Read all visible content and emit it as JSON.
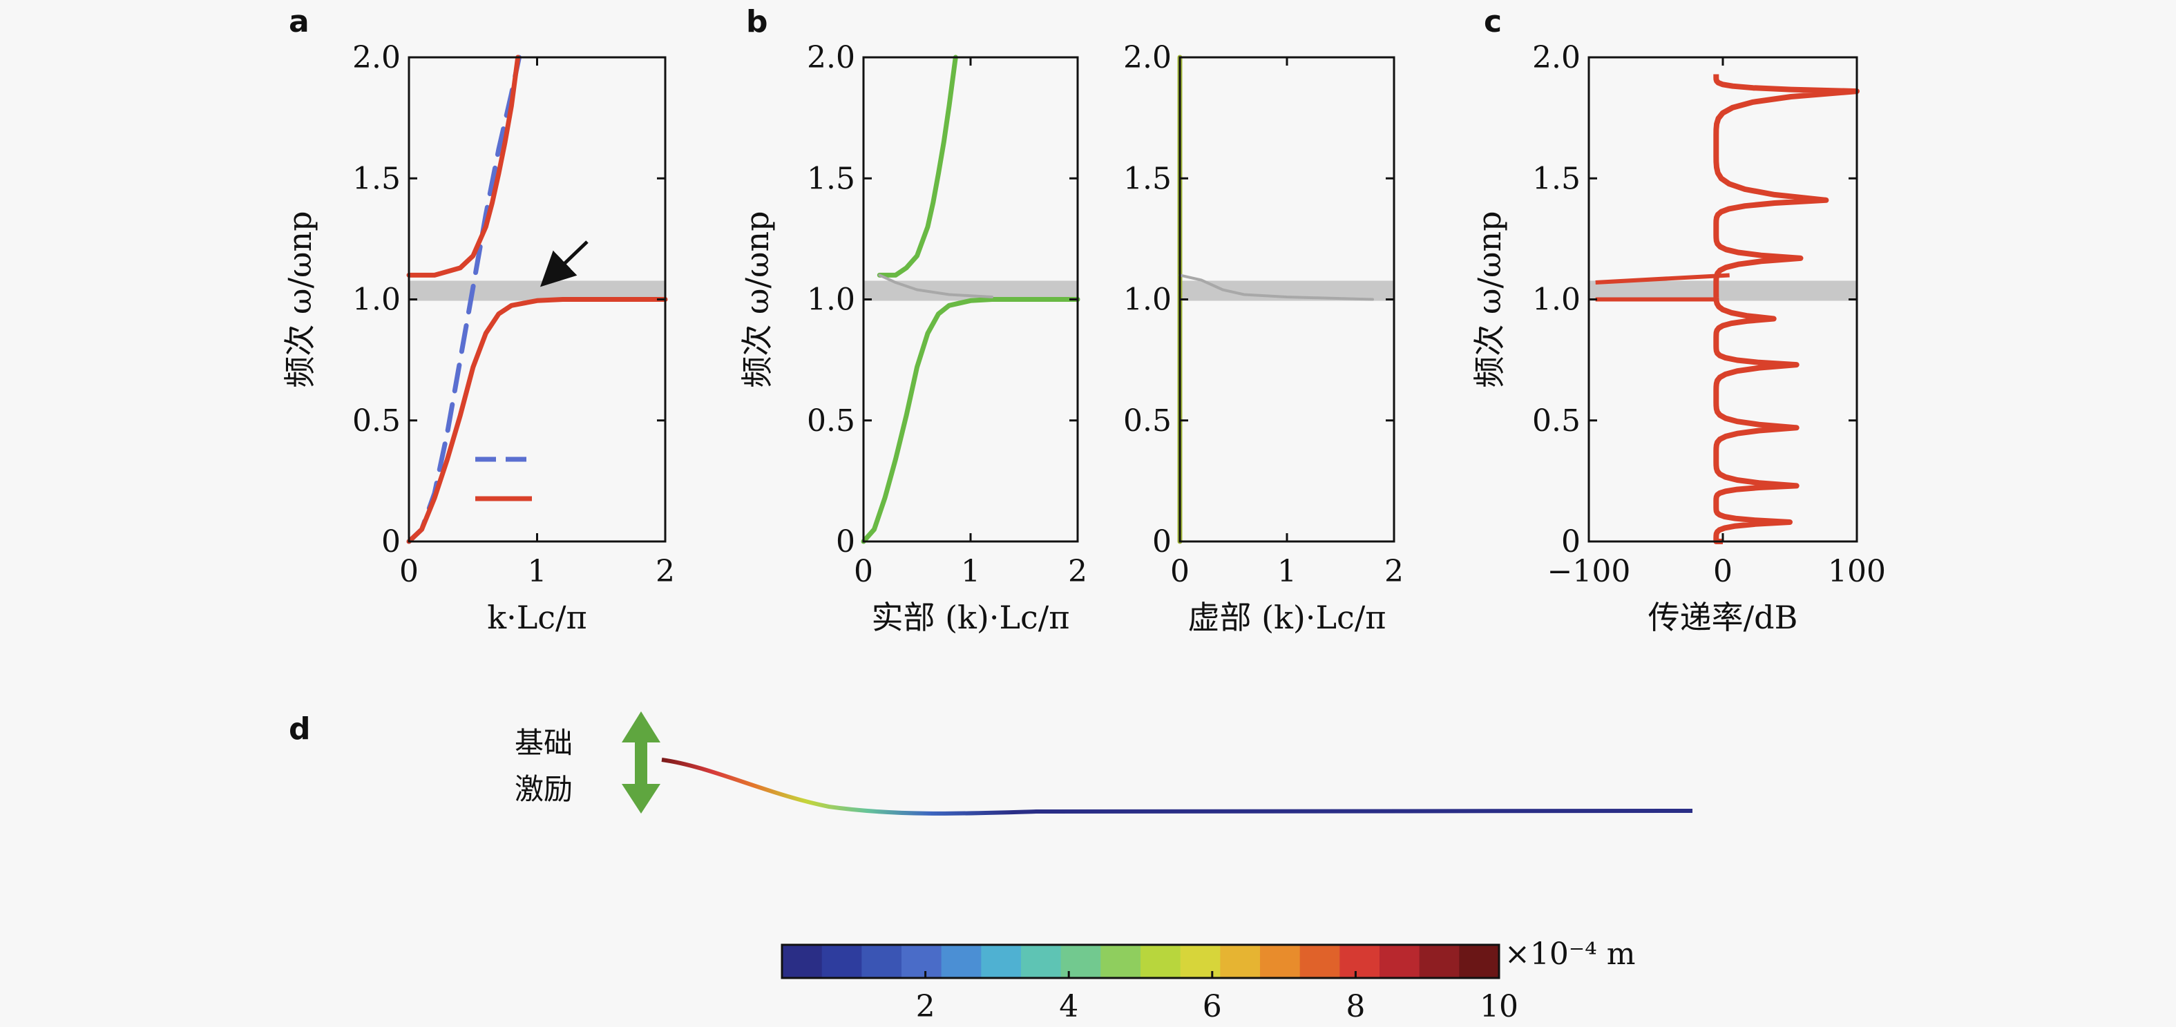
{
  "figure": {
    "panel_labels": [
      "a",
      "b",
      "c",
      "d"
    ],
    "excitation_label_line1": "基础",
    "excitation_label_line2": "激励"
  },
  "colors": {
    "red": "#d9412a",
    "blue_dashed": "#5a6fd0",
    "green": "#69b944",
    "orange": "#e3782c",
    "gray_band": "#c8c8c8",
    "olive": "#a4b83a"
  },
  "chart_data": [
    {
      "id": "a",
      "type": "line",
      "xlabel": "k·Lc/π",
      "ylabel": "频次 ω/ωnp",
      "xlim": [
        0,
        2
      ],
      "ylim": [
        0,
        2
      ],
      "xticks": [
        "0",
        "1",
        "2"
      ],
      "yticks": [
        "0",
        "0.5",
        "1.0",
        "1.5",
        "2.0"
      ],
      "band": [
        1.0,
        1.1
      ],
      "annotation": "arrow pointing to gap at k≈1.1, ω≈1.08",
      "series": [
        {
          "style": "dashed",
          "color": "blue_dashed",
          "x": [
            0,
            0.1,
            0.2,
            0.3,
            0.4,
            0.5,
            0.6,
            0.7,
            0.8,
            0.86
          ],
          "y": [
            0,
            0.05,
            0.2,
            0.45,
            0.75,
            1.05,
            1.35,
            1.62,
            1.85,
            2.0
          ]
        },
        {
          "style": "solid",
          "color": "red",
          "x": [
            0,
            0.1,
            0.2,
            0.3,
            0.4,
            0.5,
            0.6,
            0.7,
            0.8,
            1.0,
            1.2,
            1.5,
            2.0
          ],
          "y": [
            0,
            0.05,
            0.18,
            0.34,
            0.52,
            0.72,
            0.86,
            0.94,
            0.975,
            0.995,
            1.0,
            1.0,
            1.0
          ]
        },
        {
          "style": "solid",
          "color": "red",
          "x": [
            0,
            0.2,
            0.4,
            0.5,
            0.6,
            0.65,
            0.7,
            0.75,
            0.8,
            0.85
          ],
          "y": [
            1.1,
            1.1,
            1.13,
            1.18,
            1.3,
            1.4,
            1.52,
            1.65,
            1.8,
            2.0
          ]
        }
      ]
    },
    {
      "id": "b-real",
      "type": "line",
      "xlabel": "实部 (k)·Lc/π",
      "ylabel": "频次 ω/ωnp",
      "xlim": [
        0,
        2
      ],
      "ylim": [
        0,
        2
      ],
      "xticks": [
        "0",
        "1",
        "2"
      ],
      "yticks": [
        "0",
        "0.5",
        "1.0",
        "1.5",
        "2.0"
      ],
      "band": [
        1.0,
        1.1
      ],
      "series": [
        {
          "color": "green",
          "x": [
            0,
            0.1,
            0.2,
            0.3,
            0.4,
            0.5,
            0.6,
            0.7,
            0.8,
            1.0,
            1.2,
            1.5,
            2.0
          ],
          "y": [
            0,
            0.05,
            0.18,
            0.34,
            0.52,
            0.72,
            0.86,
            0.94,
            0.975,
            0.995,
            1.0,
            1.0,
            1.0
          ]
        },
        {
          "color": "green",
          "x": [
            0.15,
            0.3,
            0.4,
            0.5,
            0.6,
            0.65,
            0.7,
            0.75,
            0.8,
            0.86
          ],
          "y": [
            1.1,
            1.1,
            1.13,
            1.18,
            1.3,
            1.4,
            1.52,
            1.65,
            1.8,
            2.0
          ]
        },
        {
          "color": "gray",
          "x": [
            0.15,
            0.3,
            0.5,
            0.8,
            1.2
          ],
          "y": [
            1.1,
            1.07,
            1.04,
            1.02,
            1.01
          ]
        }
      ]
    },
    {
      "id": "b-imag",
      "type": "line",
      "xlabel": "虚部 (k)·Lc/π",
      "xlim": [
        0,
        2
      ],
      "ylim": [
        0,
        2
      ],
      "xticks": [
        "0",
        "1",
        "2"
      ],
      "yticks": [
        "0",
        "0.5",
        "1.0",
        "1.5",
        "2.0"
      ],
      "band": [
        1.0,
        1.1
      ],
      "series": [
        {
          "color": "olive",
          "x": [
            0,
            0
          ],
          "y": [
            0,
            2.0
          ]
        },
        {
          "color": "gray",
          "x": [
            0,
            0.2,
            0.4,
            0.6,
            1.0,
            1.8
          ],
          "y": [
            1.1,
            1.08,
            1.04,
            1.02,
            1.01,
            1.0
          ]
        }
      ]
    },
    {
      "id": "c",
      "type": "line",
      "xlabel": "传递率/dB",
      "ylabel": "频次 ω/ωnp",
      "xlim": [
        -100,
        100
      ],
      "ylim": [
        0,
        2
      ],
      "xticks": [
        "−100",
        "0",
        "100"
      ],
      "yticks": [
        "0",
        "0.5",
        "1.0",
        "1.5",
        "2.0"
      ],
      "band": [
        1.0,
        1.1
      ],
      "peaks": [
        {
          "y": 0.08,
          "x": 50
        },
        {
          "y": 0.23,
          "x": 55
        },
        {
          "y": 0.47,
          "x": 55
        },
        {
          "y": 0.73,
          "x": 55
        },
        {
          "y": 0.92,
          "x": 38
        },
        {
          "y": 1.17,
          "x": 58
        },
        {
          "y": 1.41,
          "x": 77
        },
        {
          "y": 1.86,
          "x": 100
        }
      ]
    }
  ],
  "colorbar": {
    "ticks": [
      "2",
      "4",
      "6",
      "8",
      "10"
    ],
    "unit": "×10⁻⁴ m",
    "min": 0,
    "max": 10
  }
}
